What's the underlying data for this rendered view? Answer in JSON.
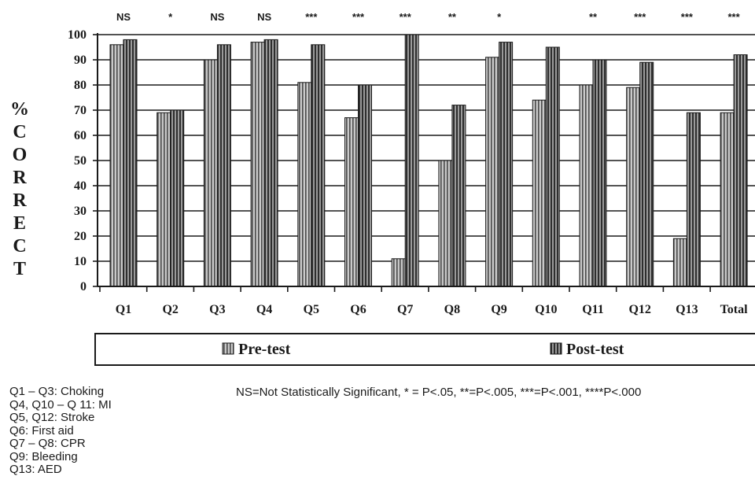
{
  "chart_data": {
    "type": "bar",
    "ylabel": "% CORRECT",
    "ylim": [
      0,
      100
    ],
    "yticks": [
      "0",
      "10",
      "20",
      "30",
      "40",
      "50",
      "60",
      "70",
      "80",
      "90",
      "100"
    ],
    "grid": true,
    "legend_position": "bottom",
    "categories": [
      "Q1",
      "Q2",
      "Q3",
      "Q4",
      "Q5",
      "Q6",
      "Q7",
      "Q8",
      "Q9",
      "Q10",
      "Q11",
      "Q12",
      "Q13",
      "Total"
    ],
    "significance": [
      "NS",
      "*",
      "NS",
      "NS",
      "***",
      "***",
      "***",
      "**",
      "*",
      "",
      "**",
      "***",
      "***",
      "***"
    ],
    "series": [
      {
        "name": "Pre-test",
        "values": [
          96,
          69,
          90,
          97,
          81,
          67,
          11,
          50,
          91,
          74,
          80,
          79,
          19,
          69
        ],
        "pattern": "light-vertical-stripes"
      },
      {
        "name": "Post-test",
        "values": [
          98,
          70,
          96,
          98,
          96,
          80,
          100,
          72,
          97,
          95,
          90,
          89,
          69,
          92
        ],
        "pattern": "dark-vertical-stripes"
      }
    ]
  },
  "notes": {
    "left": [
      "Q1 – Q3: Choking",
      "Q4, Q10 – Q 11: MI",
      "Q5, Q12: Stroke",
      "Q6: First aid",
      "Q7 – Q8: CPR",
      "Q9: Bleeding",
      "Q13: AED"
    ],
    "significance_key": "NS=Not Statistically Significant, * = P<.05, **=P<.005, ***=P<.001, ****P<.000"
  },
  "colors": {
    "axis": "#1a1a1a",
    "pre_fill": "#bdbdbd",
    "post_fill": "#8a8a8a",
    "stripe": "#3a3a3a"
  }
}
